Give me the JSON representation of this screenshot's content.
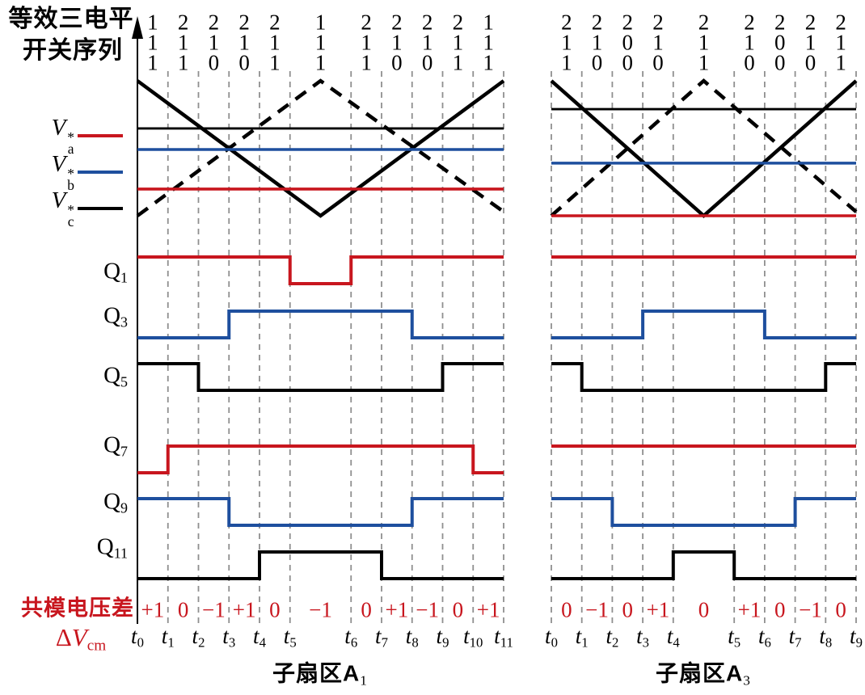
{
  "title": {
    "line1": "等效三电平",
    "line2": "开关序列"
  },
  "colors": {
    "red": "#c8161e",
    "blue": "#1e4f9e",
    "black": "#000000",
    "grid": "#8f8f8f"
  },
  "legend": {
    "items": [
      {
        "symbol": "V",
        "sup": "*",
        "sub": "a",
        "color": "red"
      },
      {
        "symbol": "V",
        "sup": "*",
        "sub": "b",
        "color": "blue"
      },
      {
        "symbol": "V",
        "sup": "*",
        "sub": "c",
        "color": "black"
      }
    ]
  },
  "q_labels": [
    {
      "base": "Q",
      "sub": "1"
    },
    {
      "base": "Q",
      "sub": "3"
    },
    {
      "base": "Q",
      "sub": "5"
    },
    {
      "base": "Q",
      "sub": "7"
    },
    {
      "base": "Q",
      "sub": "9"
    },
    {
      "base": "Q",
      "sub": "11"
    }
  ],
  "footer": {
    "dvcm_title": "共模电压差",
    "dvcm_symbol": {
      "delta": "Δ",
      "v": "V",
      "sub": "cm"
    },
    "t_symbol": "t"
  },
  "chart_data": {
    "type": "timing-diagram",
    "panels": [
      {
        "name": "A1",
        "footer": {
          "text": "子扇区A",
          "sub": "1"
        },
        "n_units": 12,
        "grid_u": [
          0,
          1,
          2,
          3,
          4,
          5,
          7,
          8,
          9,
          10,
          11,
          12
        ],
        "t_subs": [
          "0",
          "1",
          "2",
          "3",
          "4",
          "5",
          "6",
          "7",
          "8",
          "9",
          "10",
          "11"
        ],
        "sequences": [
          [
            "1",
            "1",
            "1"
          ],
          [
            "2",
            "1",
            "1"
          ],
          [
            "2",
            "1",
            "0"
          ],
          [
            "2",
            "1",
            "0"
          ],
          [
            "2",
            "1",
            "1"
          ],
          [
            "1",
            "1",
            "1"
          ],
          [
            "2",
            "1",
            "1"
          ],
          [
            "2",
            "1",
            "0"
          ],
          [
            "2",
            "1",
            "0"
          ],
          [
            "2",
            "1",
            "1"
          ],
          [
            "1",
            "1",
            "1"
          ]
        ],
        "dvcm": [
          "+1",
          "0",
          "−1",
          "+1",
          "0",
          "−1",
          "0",
          "+1",
          "−1",
          "0",
          "+1"
        ],
        "carriers": [
          {
            "name": "carrier-solid",
            "style": "solid",
            "points": [
              [
                0,
                0
              ],
              [
                6,
                1
              ],
              [
                12,
                0
              ]
            ]
          },
          {
            "name": "carrier-dashed",
            "style": "dashed",
            "points": [
              [
                0,
                1
              ],
              [
                6,
                0
              ],
              [
                12,
                0.97
              ]
            ]
          }
        ],
        "refs": [
          {
            "phase": "c",
            "color": "black",
            "level": 0.353
          },
          {
            "phase": "b",
            "color": "blue",
            "level": 0.509
          },
          {
            "phase": "a",
            "color": "red",
            "level": 0.802
          }
        ],
        "waveforms": [
          {
            "label": "Q1",
            "color": "red",
            "initial": 1,
            "toggles": [
              5,
              7
            ]
          },
          {
            "label": "Q3",
            "color": "blue",
            "initial": 0,
            "toggles": [
              3,
              9
            ]
          },
          {
            "label": "Q5",
            "color": "black",
            "initial": 1,
            "toggles": [
              2,
              10
            ]
          },
          {
            "label": "Q7",
            "color": "red",
            "initial": 0,
            "toggles": [
              1,
              11
            ]
          },
          {
            "label": "Q9",
            "color": "blue",
            "initial": 1,
            "toggles": [
              3,
              9
            ]
          },
          {
            "label": "Q11",
            "color": "black",
            "initial": 0,
            "toggles": [
              4,
              8
            ]
          }
        ]
      },
      {
        "name": "A3",
        "footer": {
          "text": "子扇区A",
          "sub": "3"
        },
        "n_units": 10,
        "grid_u": [
          0,
          1,
          2,
          3,
          4,
          6,
          7,
          8,
          9,
          10
        ],
        "t_subs": [
          "0",
          "1",
          "2",
          "3",
          "4",
          "5",
          "6",
          "7",
          "8",
          "9"
        ],
        "sequences": [
          [
            "2",
            "1",
            "1"
          ],
          [
            "2",
            "1",
            "0"
          ],
          [
            "2",
            "0",
            "0"
          ],
          [
            "2",
            "1",
            "0"
          ],
          [
            "2",
            "1",
            "1"
          ],
          [
            "2",
            "1",
            "0"
          ],
          [
            "2",
            "0",
            "0"
          ],
          [
            "2",
            "1",
            "0"
          ],
          [
            "2",
            "1",
            "1"
          ]
        ],
        "dvcm": [
          "0",
          "−1",
          "0",
          "+1",
          "0",
          "+1",
          "0",
          "−1",
          "0"
        ],
        "carriers": [
          {
            "name": "carrier-solid",
            "style": "solid",
            "points": [
              [
                0,
                0
              ],
              [
                5,
                1
              ],
              [
                10,
                0
              ]
            ]
          },
          {
            "name": "carrier-dashed",
            "style": "dashed",
            "points": [
              [
                0,
                1
              ],
              [
                5,
                0
              ],
              [
                10,
                0.97
              ]
            ]
          }
        ],
        "refs": [
          {
            "phase": "c",
            "color": "black",
            "level": 0.21
          },
          {
            "phase": "b",
            "color": "blue",
            "level": 0.61
          },
          {
            "phase": "a",
            "color": "red",
            "level": 1.0
          }
        ],
        "waveforms": [
          {
            "label": "Q1",
            "color": "red",
            "initial": 1,
            "toggles": []
          },
          {
            "label": "Q3",
            "color": "blue",
            "initial": 0,
            "toggles": [
              3,
              7
            ]
          },
          {
            "label": "Q5",
            "color": "black",
            "initial": 1,
            "toggles": [
              1,
              9
            ]
          },
          {
            "label": "Q7",
            "color": "red",
            "initial": 1,
            "toggles": []
          },
          {
            "label": "Q9",
            "color": "blue",
            "initial": 1,
            "toggles": [
              2,
              8
            ]
          },
          {
            "label": "Q11",
            "color": "black",
            "initial": 0,
            "toggles": [
              4,
              6
            ]
          }
        ]
      }
    ]
  }
}
